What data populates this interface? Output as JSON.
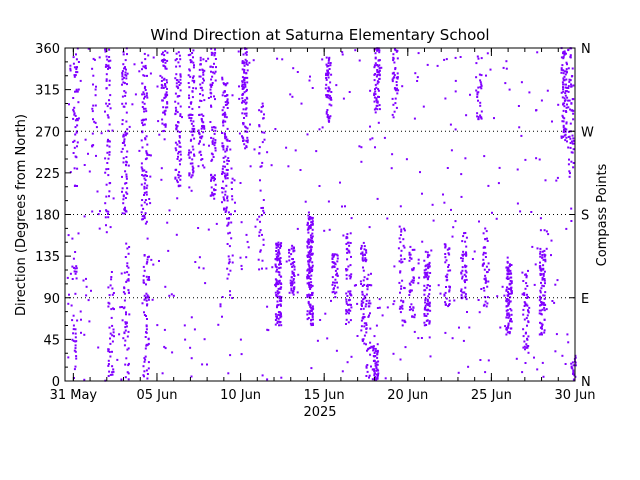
{
  "chart_data": {
    "type": "scatter",
    "title": "Wind Direction at Saturna Elementary School",
    "ylabel": "Direction (Degrees from North)",
    "y2label": "Compass Points",
    "xlabel": "2025",
    "ylim": [
      0,
      360
    ],
    "y_ticks": [
      "0",
      "45",
      "90",
      "135",
      "180",
      "225",
      "270",
      "315",
      "360"
    ],
    "x_range_days": [
      30.5,
      61
    ],
    "x_ticks": [
      {
        "day": 31,
        "label": "31 May"
      },
      {
        "day": 36,
        "label": "05 Jun"
      },
      {
        "day": 41,
        "label": "10 Jun"
      },
      {
        "day": 46,
        "label": "15 Jun"
      },
      {
        "day": 51,
        "label": "20 Jun"
      },
      {
        "day": 56,
        "label": "25 Jun"
      },
      {
        "day": 61,
        "label": "30 Jun"
      }
    ],
    "compass_points": [
      {
        "label": "N",
        "deg": 0
      },
      {
        "label": "E",
        "deg": 90
      },
      {
        "label": "S",
        "deg": 180
      },
      {
        "label": "W",
        "deg": 270
      },
      {
        "label": "N",
        "deg": 360
      }
    ],
    "grid_lines_deg": [
      90,
      180,
      270
    ],
    "marker_color": "#8000ff",
    "clusters": [
      {
        "day": 31.0,
        "deg_min": 0,
        "deg_max": 140,
        "n": 30
      },
      {
        "day": 31.1,
        "deg_min": 210,
        "deg_max": 360,
        "n": 50
      },
      {
        "day": 32.2,
        "deg_min": 240,
        "deg_max": 350,
        "n": 20
      },
      {
        "day": 33.0,
        "deg_min": 160,
        "deg_max": 360,
        "n": 60
      },
      {
        "day": 33.2,
        "deg_min": 0,
        "deg_max": 120,
        "n": 40
      },
      {
        "day": 34.0,
        "deg_min": 180,
        "deg_max": 360,
        "n": 80
      },
      {
        "day": 34.1,
        "deg_min": 0,
        "deg_max": 150,
        "n": 50
      },
      {
        "day": 35.2,
        "deg_min": 170,
        "deg_max": 360,
        "n": 90
      },
      {
        "day": 35.3,
        "deg_min": 0,
        "deg_max": 140,
        "n": 60
      },
      {
        "day": 36.4,
        "deg_min": 270,
        "deg_max": 360,
        "n": 60
      },
      {
        "day": 37.2,
        "deg_min": 210,
        "deg_max": 360,
        "n": 80
      },
      {
        "day": 38.0,
        "deg_min": 220,
        "deg_max": 360,
        "n": 80
      },
      {
        "day": 38.6,
        "deg_min": 230,
        "deg_max": 360,
        "n": 60
      },
      {
        "day": 39.3,
        "deg_min": 200,
        "deg_max": 360,
        "n": 80
      },
      {
        "day": 40.0,
        "deg_min": 180,
        "deg_max": 330,
        "n": 90
      },
      {
        "day": 40.3,
        "deg_min": 90,
        "deg_max": 260,
        "n": 40
      },
      {
        "day": 41.2,
        "deg_min": 250,
        "deg_max": 360,
        "n": 90
      },
      {
        "day": 42.2,
        "deg_min": 120,
        "deg_max": 300,
        "n": 40
      },
      {
        "day": 43.2,
        "deg_min": 60,
        "deg_max": 150,
        "n": 120
      },
      {
        "day": 44.0,
        "deg_min": 90,
        "deg_max": 150,
        "n": 50
      },
      {
        "day": 45.1,
        "deg_min": 60,
        "deg_max": 180,
        "n": 160
      },
      {
        "day": 46.2,
        "deg_min": 280,
        "deg_max": 350,
        "n": 60
      },
      {
        "day": 46.6,
        "deg_min": 90,
        "deg_max": 140,
        "n": 40
      },
      {
        "day": 47.4,
        "deg_min": 60,
        "deg_max": 160,
        "n": 60
      },
      {
        "day": 48.3,
        "deg_min": 40,
        "deg_max": 150,
        "n": 60
      },
      {
        "day": 48.6,
        "deg_min": 0,
        "deg_max": 120,
        "n": 40
      },
      {
        "day": 49.1,
        "deg_min": 290,
        "deg_max": 360,
        "n": 70
      },
      {
        "day": 49.0,
        "deg_min": 0,
        "deg_max": 40,
        "n": 50
      },
      {
        "day": 50.2,
        "deg_min": 280,
        "deg_max": 360,
        "n": 40
      },
      {
        "day": 50.6,
        "deg_min": 60,
        "deg_max": 170,
        "n": 40
      },
      {
        "day": 51.2,
        "deg_min": 60,
        "deg_max": 150,
        "n": 40
      },
      {
        "day": 52.1,
        "deg_min": 60,
        "deg_max": 140,
        "n": 80
      },
      {
        "day": 53.3,
        "deg_min": 80,
        "deg_max": 150,
        "n": 40
      },
      {
        "day": 54.3,
        "deg_min": 80,
        "deg_max": 160,
        "n": 50
      },
      {
        "day": 55.2,
        "deg_min": 280,
        "deg_max": 350,
        "n": 30
      },
      {
        "day": 55.6,
        "deg_min": 80,
        "deg_max": 170,
        "n": 40
      },
      {
        "day": 57.0,
        "deg_min": 50,
        "deg_max": 130,
        "n": 100
      },
      {
        "day": 58.0,
        "deg_min": 30,
        "deg_max": 120,
        "n": 50
      },
      {
        "day": 59.0,
        "deg_min": 50,
        "deg_max": 140,
        "n": 80
      },
      {
        "day": 60.3,
        "deg_min": 260,
        "deg_max": 360,
        "n": 80
      },
      {
        "day": 60.7,
        "deg_min": 220,
        "deg_max": 360,
        "n": 60
      },
      {
        "day": 60.9,
        "deg_min": 0,
        "deg_max": 30,
        "n": 20
      }
    ],
    "scatter_background_points": 500
  }
}
